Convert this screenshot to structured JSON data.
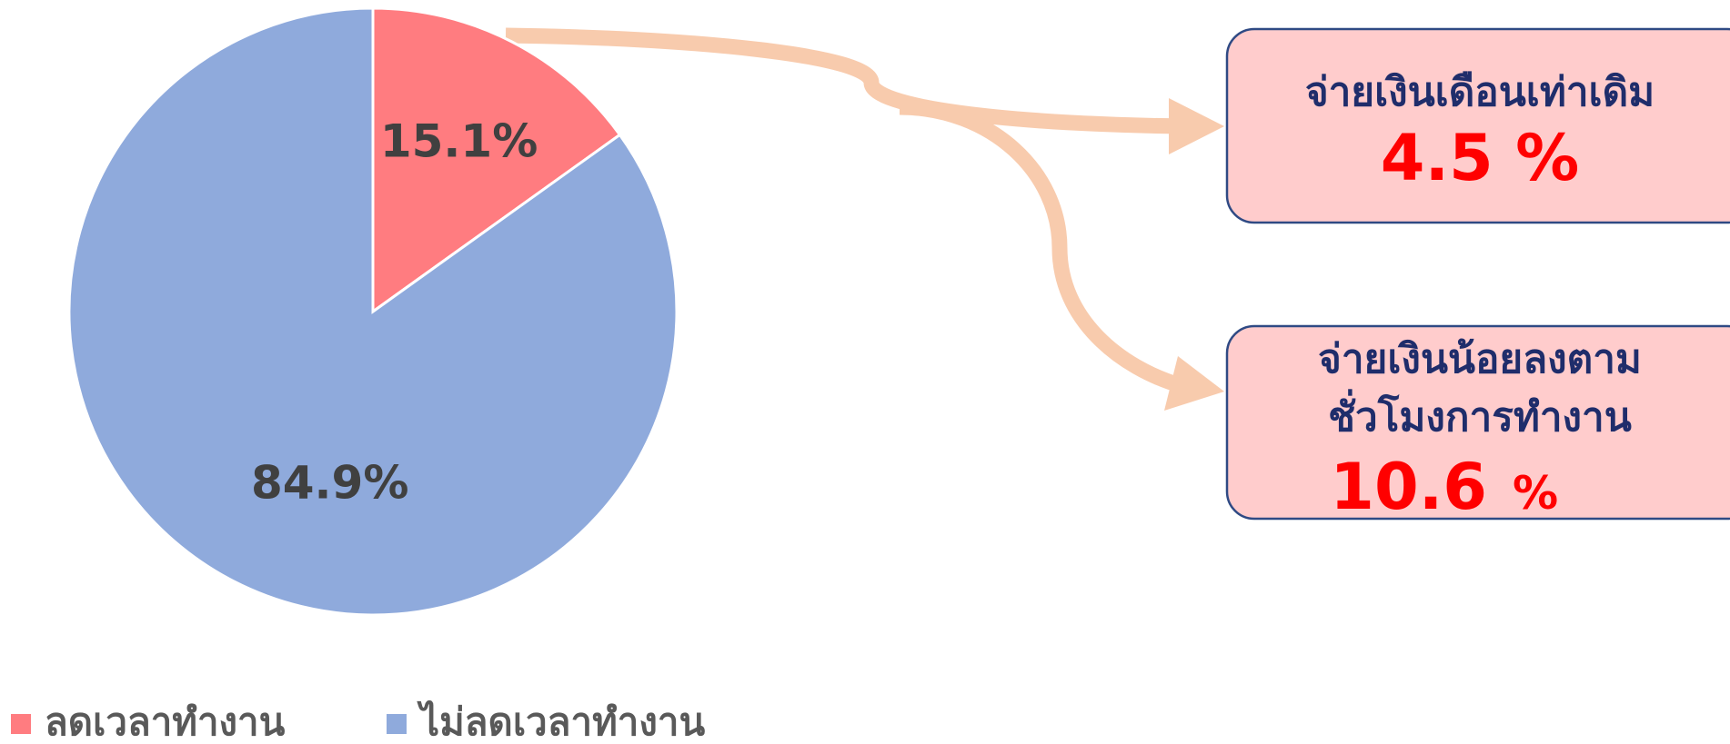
{
  "chart_data": {
    "type": "pie",
    "categories": [
      "ลดเวลาทำงาน",
      "ไม่ลดเวลาทำงาน"
    ],
    "values": [
      15.1,
      84.9
    ],
    "value_labels": [
      "15.1%",
      "84.9%"
    ],
    "colors": [
      "#ff7c80",
      "#8faadc"
    ],
    "legend": "bottom",
    "annotations": [
      {
        "lines": [
          "จ่ายเงินเดือนเท่าเดิม"
        ],
        "value_label": "4.5 %"
      },
      {
        "lines": [
          "จ่ายเงินน้อยลงตาม",
          "ชั่วโมงการทำงาน"
        ],
        "value_label": "10.6",
        "unit": "%"
      }
    ]
  }
}
